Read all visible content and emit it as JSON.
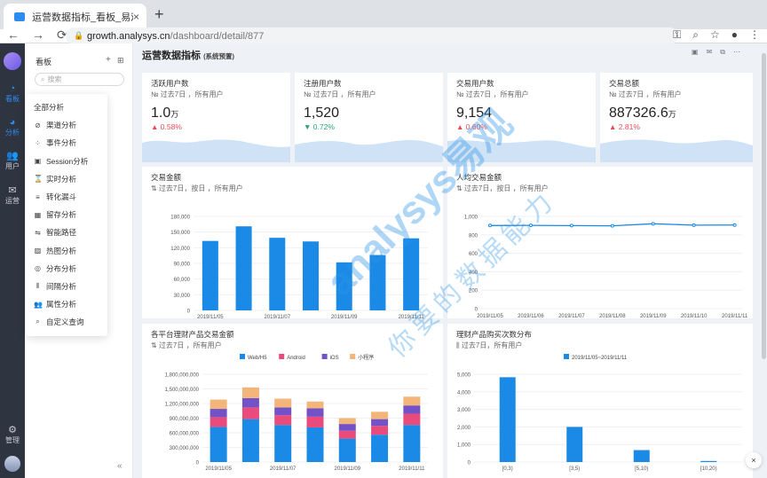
{
  "browser": {
    "tab_title": "运营数据指标_看板_易观方舟",
    "tab_close": "×",
    "new_tab": "+",
    "url_host": "growth.analysys.cn",
    "url_path": "/dashboard/detail/877",
    "nav": {
      "back": "←",
      "forward": "→",
      "reload": "⟳"
    },
    "tools": {
      "key": "⚿",
      "zoom": "⌕",
      "star": "☆",
      "profile": "●",
      "menu": "⋮"
    }
  },
  "leftnav": {
    "items": [
      {
        "label": "看板",
        "icon": "dashboard-icon",
        "glyph": "◔"
      },
      {
        "label": "分析",
        "icon": "pie-chart-icon",
        "glyph": "◕"
      },
      {
        "label": "用户",
        "icon": "users-icon",
        "glyph": "👥"
      },
      {
        "label": "运营",
        "icon": "mail-icon",
        "glyph": "✉"
      },
      {
        "label": "管理",
        "icon": "gear-icon",
        "glyph": "⚙"
      }
    ]
  },
  "panel": {
    "title": "看板",
    "add": "+",
    "grid": "⊞",
    "search_placeholder": "搜索",
    "collapse": "«"
  },
  "menu": {
    "items": [
      {
        "label": "全部分析",
        "icon": ""
      },
      {
        "label": "渠道分析",
        "icon": "⊘"
      },
      {
        "label": "事件分析",
        "icon": "⁘"
      },
      {
        "label": "Session分析",
        "icon": "▣"
      },
      {
        "label": "实时分析",
        "icon": "⌛"
      },
      {
        "label": "转化漏斗",
        "icon": "≡"
      },
      {
        "label": "留存分析",
        "icon": "▦"
      },
      {
        "label": "智能路径",
        "icon": "⇋"
      },
      {
        "label": "热图分析",
        "icon": "▨"
      },
      {
        "label": "分布分析",
        "icon": "◎"
      },
      {
        "label": "间隔分析",
        "icon": "⦀"
      },
      {
        "label": "属性分析",
        "icon": "👥"
      },
      {
        "label": "自定义查询",
        "icon": "⌕"
      }
    ]
  },
  "dashboard": {
    "title": "运营数据指标",
    "tag": "(系统预置)",
    "tools": [
      "▣",
      "✉",
      "⧉",
      "⋯"
    ]
  },
  "kpis": [
    {
      "name": "活跃用户数",
      "sub": "№ 过去7日 ，所有用户",
      "value": "1.0",
      "unit": "万",
      "change": "▲ 0.58%",
      "dir": "up"
    },
    {
      "name": "注册用户数",
      "sub": "№ 过去7日 ，所有用户",
      "value": "1,520",
      "unit": "",
      "change": "▼ 0.72%",
      "dir": "down"
    },
    {
      "name": "交易用户数",
      "sub": "№ 过去7日 ，所有用户",
      "value": "9,154",
      "unit": "",
      "change": "▲ 0.60%",
      "dir": "up"
    },
    {
      "name": "交易总额",
      "sub": "№ 过去7日 ，所有用户",
      "value": "887326.6",
      "unit": "万",
      "change": "▲ 2.81%",
      "dir": "up"
    }
  ],
  "cards": {
    "trade_amount": {
      "name": "交易金额",
      "sub": "⇅ 过去7日，按日 ，所有用户"
    },
    "per_user": {
      "name": "人均交易金额",
      "sub": "⇅ 过去7日，按日 ，所有用户"
    },
    "platform": {
      "name": "各平台理财产品交易金额",
      "sub": "⇅ 过去7日 ，所有用户"
    },
    "distribution": {
      "name": "理财产品购买次数分布",
      "sub": "⫼ 过去7日，所有用户"
    }
  },
  "chart_data": [
    {
      "type": "bar",
      "categories": [
        "2019/11/05",
        "2019/11/06",
        "2019/11/07",
        "2019/11/08",
        "2019/11/09",
        "2019/11/10",
        "2019/11/11"
      ],
      "tick_labels": [
        "2019/11/05",
        "2019/11/07",
        "2019/11/09",
        "2019/11/11"
      ],
      "values": [
        133000,
        161000,
        139000,
        132000,
        92000,
        106000,
        138000
      ],
      "yticks": [
        "0",
        "30,000",
        "60,000",
        "90,000",
        "120,000",
        "150,000",
        "180,000"
      ],
      "ylim": [
        0,
        180000
      ],
      "color": "#1a8ae6"
    },
    {
      "type": "line",
      "categories": [
        "2019/11/05",
        "2019/11/06",
        "2019/11/07",
        "2019/11/08",
        "2019/11/09",
        "2019/11/10",
        "2019/11/11"
      ],
      "values": [
        901,
        903,
        900,
        898,
        920,
        905,
        906
      ],
      "yticks": [
        "0",
        "200",
        "400",
        "600",
        "800",
        "1,000"
      ],
      "ylim": [
        0,
        1000
      ],
      "color": "#1a8ae6"
    },
    {
      "type": "bar",
      "stacked": true,
      "categories": [
        "2019/11/05",
        "2019/11/06",
        "2019/11/07",
        "2019/11/08",
        "2019/11/09",
        "2019/11/10",
        "2019/11/11"
      ],
      "tick_labels": [
        "2019/11/05",
        "2019/11/07",
        "2019/11/09",
        "2019/11/11"
      ],
      "series": [
        {
          "name": "Web/H5",
          "color": "#1a8ae6",
          "values": [
            720000000,
            880000000,
            760000000,
            710000000,
            480000000,
            560000000,
            760000000
          ]
        },
        {
          "name": "Android",
          "color": "#e94b7c",
          "values": [
            200000000,
            240000000,
            200000000,
            220000000,
            160000000,
            180000000,
            230000000
          ]
        },
        {
          "name": "iOS",
          "color": "#7352c7",
          "values": [
            170000000,
            190000000,
            160000000,
            170000000,
            140000000,
            140000000,
            170000000
          ]
        },
        {
          "name": "小程序",
          "color": "#f3b579",
          "values": [
            190000000,
            220000000,
            180000000,
            140000000,
            120000000,
            150000000,
            180000000
          ]
        }
      ],
      "yticks": [
        "0",
        "300,000,000",
        "600,000,000",
        "900,000,000",
        "1,200,000,000",
        "1,500,000,000",
        "1,800,000,000"
      ],
      "ylim": [
        0,
        1800000000
      ],
      "legend": "top"
    },
    {
      "type": "bar",
      "categories": [
        "[0,3)",
        "[3,5)",
        "[5,10)",
        "[10,20)"
      ],
      "series": [
        {
          "name": "2019/11/05~2019/11/11",
          "color": "#1a8ae6",
          "values": [
            4830,
            2000,
            680,
            60
          ]
        }
      ],
      "yticks": [
        "0",
        "1,000",
        "2,000",
        "3,000",
        "4,000",
        "5,000"
      ],
      "ylim": [
        0,
        5000
      ],
      "legend": "top"
    }
  ],
  "watermark": {
    "line1": "analysys易观",
    "line2": "你要的数据能力"
  },
  "float_close": "×"
}
